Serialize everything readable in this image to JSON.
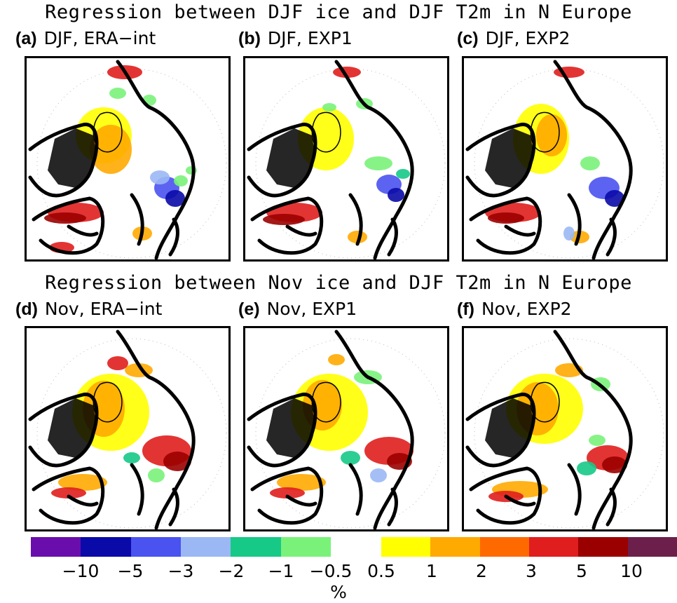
{
  "rows": [
    {
      "title": "Regression between DJF ice and DJF T2m in N Europe"
    },
    {
      "title": "Regression between Nov ice and DJF T2m in N Europe"
    }
  ],
  "panels": [
    {
      "letter": "(a)",
      "label": "DJF, ERA−int",
      "pattern": "djf_era"
    },
    {
      "letter": "(b)",
      "label": "DJF, EXP1",
      "pattern": "djf_exp1"
    },
    {
      "letter": "(c)",
      "label": "DJF, EXP2",
      "pattern": "djf_exp2"
    },
    {
      "letter": "(d)",
      "label": "Nov, ERA−int",
      "pattern": "nov_era"
    },
    {
      "letter": "(e)",
      "label": "Nov, EXP1",
      "pattern": "nov_exp1"
    },
    {
      "letter": "(f)",
      "label": "Nov, EXP2",
      "pattern": "nov_exp2"
    }
  ],
  "colorbar": {
    "negative_colors": [
      "#6a0dad",
      "#0a0aa8",
      "#4a52f0",
      "#9bb8f5",
      "#16c987",
      "#7af27a"
    ],
    "positive_colors": [
      "#ffff00",
      "#ffaa00",
      "#ff6a00",
      "#e01e1e",
      "#9b0000",
      "#6b1f4a"
    ],
    "tick_labels": [
      "−10",
      "−5",
      "−3",
      "−2",
      "−1",
      "−0.5",
      "0.5",
      "1",
      "2",
      "3",
      "5",
      "10"
    ],
    "unit": "%"
  }
}
